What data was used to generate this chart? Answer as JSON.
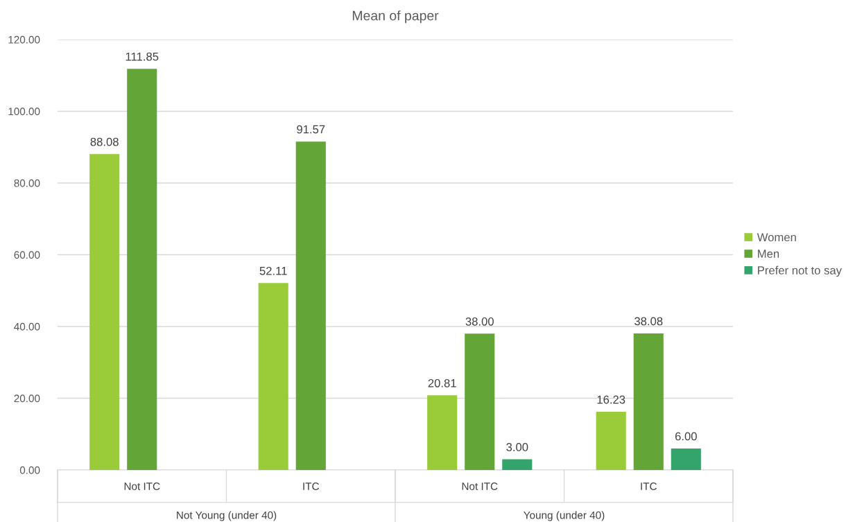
{
  "chart_data": {
    "type": "bar",
    "title": "Mean of paper",
    "categories": [
      "Not ITC",
      "ITC",
      "Not ITC",
      "ITC"
    ],
    "series": [
      {
        "name": "Women",
        "color": "#9acb38",
        "values": [
          88.08,
          52.11,
          20.81,
          16.23
        ],
        "value_labels": [
          "88.08",
          "52.11",
          "20.81",
          "16.23"
        ]
      },
      {
        "name": "Men",
        "color": "#63a537",
        "values": [
          111.85,
          91.57,
          38.0,
          38.08
        ],
        "value_labels": [
          "111.85",
          "91.57",
          "38.00",
          "38.08"
        ]
      },
      {
        "name": "Prefer not to say",
        "color": "#35a46c",
        "values": [
          null,
          null,
          3.0,
          6.0
        ],
        "value_labels": [
          null,
          null,
          "3.00",
          "6.00"
        ]
      }
    ],
    "ylim": [
      0,
      120
    ],
    "yticks": [
      {
        "value": 0,
        "label": "0.00"
      },
      {
        "value": 20,
        "label": "20.00"
      },
      {
        "value": 40,
        "label": "40.00"
      },
      {
        "value": 60,
        "label": "60.00"
      },
      {
        "value": 80,
        "label": "80.00"
      },
      {
        "value": 100,
        "label": "100.00"
      },
      {
        "value": 120,
        "label": "120.00"
      }
    ],
    "grid": "y",
    "legend": "right",
    "annotations": [
      "Not Young (under 40)",
      "Young (under 40)"
    ]
  }
}
